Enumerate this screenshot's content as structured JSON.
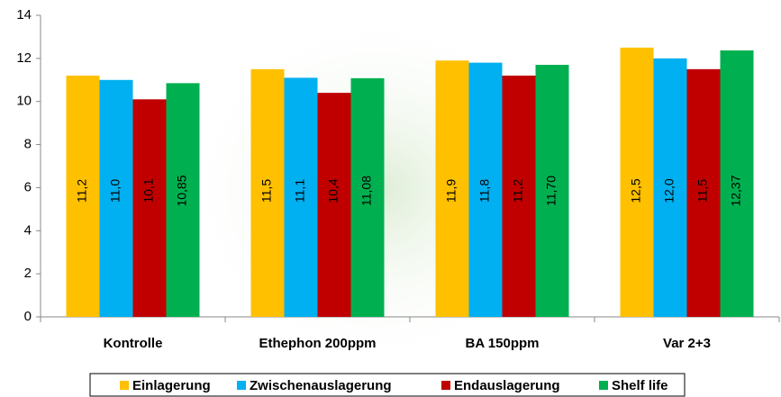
{
  "chart_data": {
    "type": "bar",
    "categories": [
      "Kontrolle",
      "Ethephon 200ppm",
      "BA 150ppm",
      "Var 2+3"
    ],
    "series": [
      {
        "name": "Einlagerung",
        "color": "#FFC000",
        "values": [
          11.2,
          11.5,
          11.9,
          12.5
        ],
        "value_labels": [
          "11,2",
          "11,5",
          "11,9",
          "12,5"
        ]
      },
      {
        "name": "Zwischenauslagerung",
        "color": "#00B0F0",
        "values": [
          11.0,
          11.1,
          11.8,
          12.0
        ],
        "value_labels": [
          "11,0",
          "11,1",
          "11,8",
          "12,0"
        ]
      },
      {
        "name": "Endauslagerung",
        "color": "#C00000",
        "values": [
          10.1,
          10.4,
          11.2,
          11.5
        ],
        "value_labels": [
          "10,1",
          "10,4",
          "11,2",
          "11,5"
        ]
      },
      {
        "name": "Shelf life",
        "color": "#00B050",
        "values": [
          10.85,
          11.08,
          11.7,
          12.37
        ],
        "value_labels": [
          "10,85",
          "11,08",
          "11,70",
          "12,37"
        ]
      }
    ],
    "ylim": [
      0,
      14
    ],
    "yticks": [
      0,
      2,
      4,
      6,
      8,
      10,
      12,
      14
    ],
    "grid": false,
    "legend": "bottom"
  }
}
